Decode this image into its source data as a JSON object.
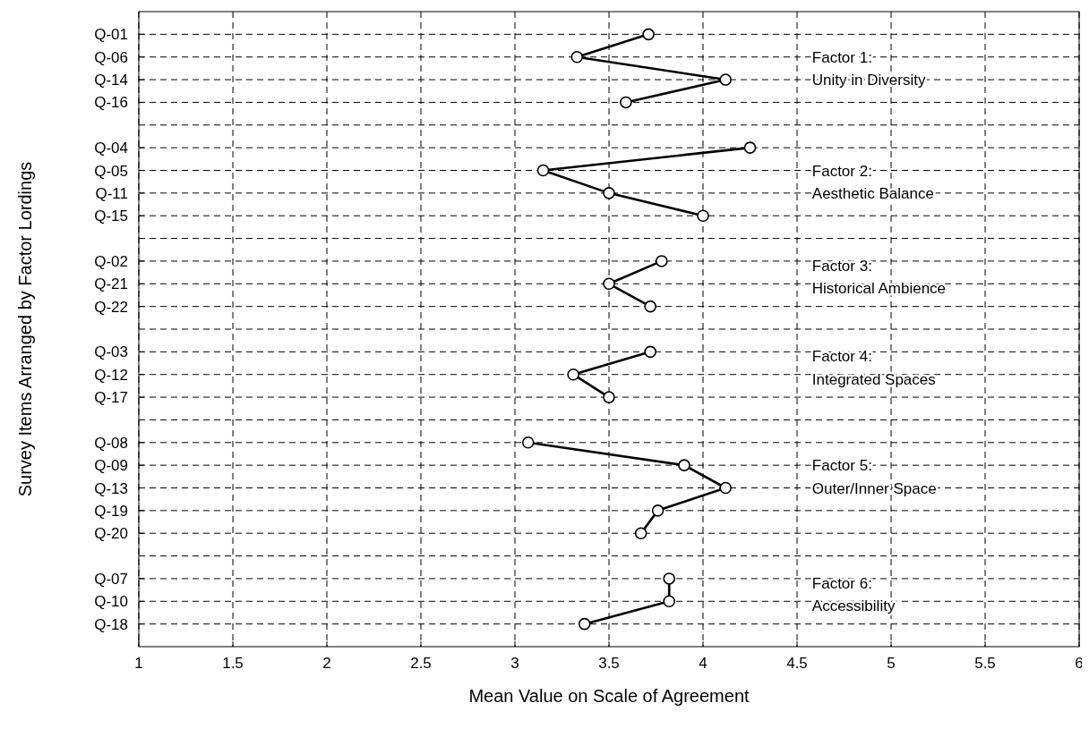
{
  "chart_data": {
    "type": "line",
    "orientation": "horizontal",
    "xlabel": "Mean Value on Scale of Agreement",
    "ylabel": "Survey Items Arranged by Factor Lordings",
    "categories": [
      "Q-01",
      "Q-06",
      "Q-14",
      "Q-16",
      null,
      "Q-04",
      "Q-05",
      "Q-11",
      "Q-15",
      null,
      "Q-02",
      "Q-21",
      "Q-22",
      null,
      "Q-03",
      "Q-12",
      "Q-17",
      null,
      "Q-08",
      "Q-09",
      "Q-13",
      "Q-19",
      "Q-20",
      null,
      "Q-07",
      "Q-10",
      "Q-18"
    ],
    "series": [
      {
        "color": "#000000",
        "values": [
          3.71,
          3.33,
          4.12,
          3.59,
          null,
          4.25,
          3.15,
          3.5,
          4.0,
          null,
          3.78,
          3.5,
          3.72,
          null,
          3.72,
          3.31,
          3.5,
          null,
          3.07,
          3.9,
          4.12,
          3.76,
          3.67,
          null,
          3.82,
          3.82,
          3.37
        ]
      }
    ],
    "xlim": [
      1,
      6
    ],
    "xticks": [
      1,
      1.5,
      2,
      2.5,
      3,
      3.5,
      4,
      4.5,
      5,
      5.5,
      6
    ],
    "grid": true,
    "marker": "circle",
    "line_style": "solid",
    "annotations": [
      "Factor 1:\nUnity in Diversity",
      "Factor 2:\nAesthetic Balance",
      "Factor 3:\nHistorical Ambience",
      "Factor 4:\nIntegrated Spaces",
      "Factor 5:\nOuter/Inner Space",
      "Factor 6:\nAccessibility"
    ]
  }
}
